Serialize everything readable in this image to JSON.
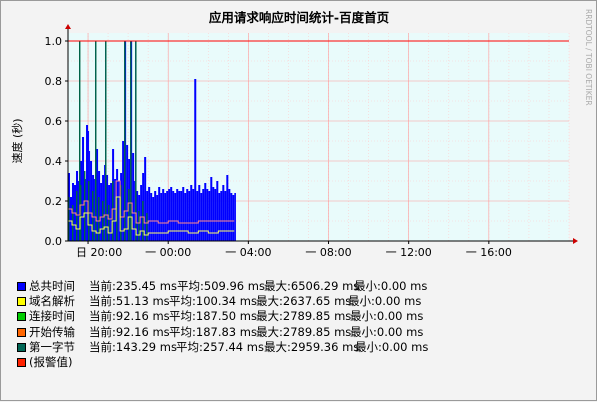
{
  "chart_data": {
    "type": "area",
    "title": "应用请求响应时间统计-百度首页",
    "ylabel": "速度 (秒)",
    "watermark": "RRDTOOL / TOBI OETIKER",
    "ylim": [
      0,
      1.0
    ],
    "xlim_hours": [
      19.0,
      27.5
    ],
    "y_ticks": [
      "0.0",
      "0.2",
      "0.4",
      "0.6",
      "0.8",
      "1.0"
    ],
    "y_tick_values": [
      0.0,
      0.2,
      0.4,
      0.6,
      0.8,
      1.0
    ],
    "x_ticks": [
      "日 20:00",
      "一 00:00",
      "一 04:00",
      "一 08:00",
      "一 12:00",
      "一 16:00"
    ],
    "x_tick_hours": [
      20,
      24,
      28,
      32,
      36,
      40
    ],
    "x_range_hours": [
      19.0,
      44.0
    ],
    "alarm_threshold": 1.0,
    "colors": {
      "total": "#0000ff",
      "dns": "#ffff00",
      "connect": "#00cc00",
      "start": "#ff6600",
      "first": "#006644",
      "alarm": "#ff0000",
      "plot_bg": "#e9fbfb",
      "grid": "#ffaaaa"
    },
    "series_total": {
      "name": "总共时间",
      "x": [
        19.0,
        19.1,
        19.2,
        19.3,
        19.4,
        19.5,
        19.55,
        19.6,
        19.7,
        19.8,
        19.9,
        20.0,
        20.05,
        20.1,
        20.2,
        20.3,
        20.35,
        20.4,
        20.5,
        20.6,
        20.7,
        20.8,
        20.85,
        20.9,
        21.0,
        21.1,
        21.2,
        21.3,
        21.4,
        21.5,
        21.6,
        21.7,
        21.8,
        21.9,
        22.0,
        22.1,
        22.2,
        22.3,
        22.35,
        22.4,
        22.5,
        22.6,
        22.7,
        22.8,
        22.9,
        23.0,
        23.1,
        23.2,
        23.3,
        23.4,
        23.5,
        23.6,
        23.7,
        23.8,
        23.9,
        24.0,
        24.1,
        24.2,
        24.3,
        24.4,
        24.5,
        24.6,
        24.7,
        24.8,
        24.9,
        25.0,
        25.1,
        25.2,
        25.3,
        25.4,
        25.5,
        25.6,
        25.7,
        25.8,
        25.9,
        26.0,
        26.1,
        26.2,
        26.3,
        26.4,
        26.5,
        26.6,
        26.7,
        26.8,
        26.9,
        27.0,
        27.1,
        27.2,
        27.3
      ],
      "values": [
        0.34,
        0.22,
        0.29,
        0.28,
        0.35,
        0.3,
        1.0,
        0.4,
        0.52,
        0.31,
        0.58,
        0.55,
        0.45,
        0.4,
        0.33,
        0.31,
        1.0,
        0.46,
        0.35,
        0.29,
        0.33,
        0.38,
        1.0,
        0.33,
        0.28,
        0.29,
        0.46,
        0.31,
        0.36,
        0.3,
        0.34,
        0.5,
        1.0,
        0.48,
        0.41,
        1.0,
        0.44,
        0.3,
        1.0,
        0.25,
        0.23,
        0.28,
        0.34,
        0.42,
        0.25,
        0.27,
        0.24,
        0.22,
        0.25,
        0.23,
        0.27,
        0.24,
        0.26,
        0.24,
        0.25,
        0.26,
        0.27,
        0.25,
        0.24,
        0.26,
        0.25,
        0.25,
        0.27,
        0.24,
        0.26,
        0.25,
        0.28,
        0.26,
        0.81,
        0.25,
        0.28,
        0.24,
        0.26,
        0.29,
        0.26,
        0.25,
        0.32,
        0.27,
        0.26,
        0.3,
        0.24,
        0.25,
        0.28,
        0.25,
        0.33,
        0.26,
        0.24,
        0.23,
        0.24
      ]
    },
    "series_first_byte": {
      "name": "第一字节",
      "x": [
        19.0,
        19.2,
        19.4,
        19.55,
        19.6,
        19.8,
        20.0,
        20.2,
        20.35,
        20.5,
        20.7,
        20.85,
        21.0,
        21.2,
        21.4,
        21.6,
        21.8,
        22.0,
        22.1,
        22.35,
        22.5,
        22.7,
        22.9
      ],
      "values": [
        0.22,
        0.18,
        0.25,
        1.0,
        0.28,
        0.35,
        0.3,
        0.25,
        1.0,
        0.22,
        0.2,
        1.0,
        0.18,
        0.3,
        0.22,
        0.28,
        1.0,
        0.26,
        1.0,
        1.0,
        0.15,
        0.2,
        0.14
      ]
    },
    "series_start": {
      "name": "开始传输",
      "x": [
        19.0,
        19.2,
        19.4,
        19.6,
        19.8,
        20.0,
        20.2,
        20.4,
        20.6,
        20.8,
        21.0,
        21.2,
        21.4,
        21.6,
        21.8,
        22.0,
        22.2,
        22.4,
        22.6,
        22.8,
        23.0,
        23.5,
        24.0,
        24.5,
        25.0,
        25.5,
        26.0,
        26.5,
        27.0,
        27.3
      ],
      "values": [
        0.16,
        0.14,
        0.13,
        0.18,
        0.2,
        0.14,
        0.12,
        0.1,
        0.12,
        0.13,
        0.11,
        0.16,
        0.3,
        0.12,
        0.15,
        0.19,
        0.14,
        0.09,
        0.12,
        0.09,
        0.1,
        0.09,
        0.1,
        0.09,
        0.09,
        0.1,
        0.1,
        0.1,
        0.1,
        0.1
      ]
    },
    "series_dns": {
      "name": "域名解析",
      "x": [
        19.0,
        19.2,
        19.4,
        19.6,
        19.8,
        20.0,
        20.2,
        20.4,
        20.6,
        20.8,
        21.0,
        21.2,
        21.4,
        21.6,
        21.8,
        22.0,
        22.2,
        22.4,
        22.6,
        22.8,
        23.0,
        23.5,
        24.0,
        24.5,
        25.0,
        25.5,
        26.0,
        26.5,
        27.0,
        27.3
      ],
      "values": [
        0.1,
        0.08,
        0.06,
        0.12,
        0.14,
        0.08,
        0.05,
        0.04,
        0.06,
        0.07,
        0.04,
        0.1,
        0.22,
        0.05,
        0.06,
        0.12,
        0.06,
        0.03,
        0.05,
        0.03,
        0.04,
        0.04,
        0.05,
        0.05,
        0.04,
        0.05,
        0.04,
        0.05,
        0.05,
        0.05
      ]
    }
  },
  "legend": [
    {
      "name": "总共时间",
      "color": "#0000ff",
      "current": "当前:235.45 ms",
      "avg": "平均:509.96 ms",
      "max": "最大:6506.29 ms",
      "min": "最小:0.00 ms",
      "avg_x": 88,
      "max_x": 175,
      "min_x": 265
    },
    {
      "name": "域名解析",
      "color": "#ffff00",
      "current": "当前:51.13 ms",
      "avg": "平均:100.34 ms",
      "max": "最大:2637.65 ms",
      "min": "最小:0.00 ms",
      "avg_x": 80,
      "max_x": 167,
      "min_x": 259
    },
    {
      "name": "连接时间",
      "color": "#00cc00",
      "current": "当前:92.16 ms",
      "avg": "平均:187.50 ms",
      "max": "最大:2789.85 ms",
      "min": "最小:0.00 ms",
      "avg_x": 80,
      "max_x": 167,
      "min_x": 261
    },
    {
      "name": "开始传输",
      "color": "#ff6600",
      "current": "当前:92.16 ms",
      "avg": "平均:187.83 ms",
      "max": "最大:2789.85 ms",
      "min": "最小:0.00 ms",
      "avg_x": 80,
      "max_x": 167,
      "min_x": 261
    },
    {
      "name": "第一字节",
      "color": "#006655",
      "current": "当前:143.29 ms",
      "avg": "平均:257.44 ms",
      "max": "最大:2959.36 ms",
      "min": "最小:0.00 ms",
      "avg_x": 87,
      "max_x": 175,
      "min_x": 266
    },
    {
      "name": "(报警值)",
      "color": "#ff2200",
      "current": "",
      "avg": "",
      "max": "",
      "min": "",
      "avg_x": 0,
      "max_x": 0,
      "min_x": 0
    }
  ]
}
